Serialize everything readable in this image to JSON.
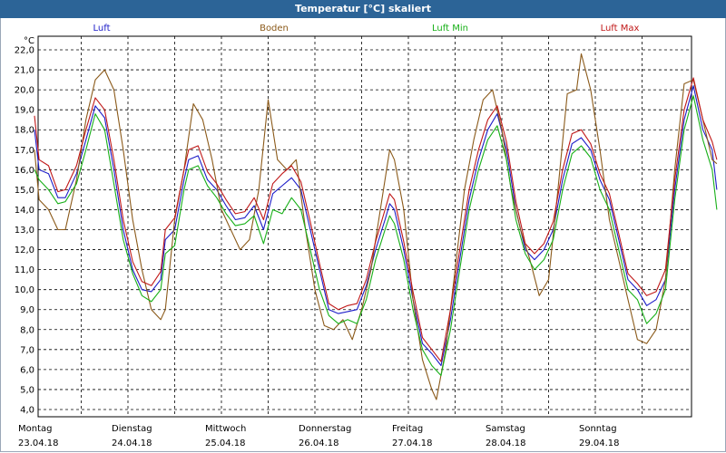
{
  "window": {
    "title": "Temperatur [°C] skaliert"
  },
  "chart_data": {
    "type": "line",
    "title": "Temperatur [°C] skaliert",
    "ylabel": "°C",
    "ylim": [
      4.0,
      22.0
    ],
    "yticks": [
      "4,0",
      "5,0",
      "6,0",
      "7,0",
      "8,0",
      "9,0",
      "10,0",
      "11,0",
      "12,0",
      "13,0",
      "14,0",
      "15,0",
      "16,0",
      "17,0",
      "18,0",
      "19,0",
      "20,0",
      "21,0",
      "22,0"
    ],
    "xlim": [
      0,
      7
    ],
    "x_categories": [
      {
        "day": "Montag",
        "date": "23.04.18"
      },
      {
        "day": "Dienstag",
        "date": "24.04.18"
      },
      {
        "day": "Mittwoch",
        "date": "25.04.18"
      },
      {
        "day": "Donnerstag",
        "date": "26.04.18"
      },
      {
        "day": "Freitag",
        "date": "27.04.18"
      },
      {
        "day": "Samstag",
        "date": "28.04.18"
      },
      {
        "day": "Sonntag",
        "date": "29.04.18"
      }
    ],
    "grid": true,
    "legend_position": "top",
    "series": [
      {
        "name": "Luft",
        "color": "#1c1cc8",
        "points": [
          [
            0.0,
            18.0
          ],
          [
            0.05,
            16.0
          ],
          [
            0.15,
            15.8
          ],
          [
            0.25,
            14.6
          ],
          [
            0.33,
            14.6
          ],
          [
            0.45,
            15.8
          ],
          [
            0.55,
            17.5
          ],
          [
            0.65,
            19.2
          ],
          [
            0.75,
            18.6
          ],
          [
            0.85,
            16.0
          ],
          [
            0.95,
            13.0
          ],
          [
            1.05,
            11.0
          ],
          [
            1.15,
            10.0
          ],
          [
            1.25,
            9.9
          ],
          [
            1.35,
            10.5
          ],
          [
            1.4,
            12.5
          ],
          [
            1.5,
            13.0
          ],
          [
            1.6,
            15.5
          ],
          [
            1.65,
            16.5
          ],
          [
            1.75,
            16.7
          ],
          [
            1.85,
            15.5
          ],
          [
            1.95,
            15.0
          ],
          [
            2.05,
            14.2
          ],
          [
            2.15,
            13.5
          ],
          [
            2.25,
            13.6
          ],
          [
            2.35,
            14.2
          ],
          [
            2.45,
            13.0
          ],
          [
            2.55,
            14.8
          ],
          [
            2.65,
            15.2
          ],
          [
            2.75,
            15.6
          ],
          [
            2.85,
            15.0
          ],
          [
            2.95,
            13.0
          ],
          [
            3.05,
            11.0
          ],
          [
            3.15,
            9.0
          ],
          [
            3.25,
            8.8
          ],
          [
            3.35,
            8.9
          ],
          [
            3.45,
            9.0
          ],
          [
            3.55,
            10.2
          ],
          [
            3.65,
            12.0
          ],
          [
            3.75,
            13.5
          ],
          [
            3.8,
            14.3
          ],
          [
            3.85,
            14.0
          ],
          [
            3.95,
            12.0
          ],
          [
            4.05,
            9.5
          ],
          [
            4.15,
            7.3
          ],
          [
            4.25,
            6.8
          ],
          [
            4.35,
            6.2
          ],
          [
            4.45,
            8.5
          ],
          [
            4.55,
            11.5
          ],
          [
            4.65,
            14.5
          ],
          [
            4.75,
            16.5
          ],
          [
            4.85,
            18.0
          ],
          [
            4.95,
            18.8
          ],
          [
            5.05,
            17.0
          ],
          [
            5.15,
            14.0
          ],
          [
            5.25,
            12.0
          ],
          [
            5.35,
            11.5
          ],
          [
            5.45,
            12.0
          ],
          [
            5.55,
            13.0
          ],
          [
            5.65,
            15.5
          ],
          [
            5.75,
            17.3
          ],
          [
            5.85,
            17.6
          ],
          [
            5.95,
            17.0
          ],
          [
            6.05,
            15.5
          ],
          [
            6.15,
            14.5
          ],
          [
            6.25,
            12.5
          ],
          [
            6.35,
            10.5
          ],
          [
            6.45,
            10.0
          ],
          [
            6.55,
            9.2
          ],
          [
            6.65,
            9.5
          ],
          [
            6.75,
            10.5
          ],
          [
            6.85,
            15.0
          ],
          [
            6.95,
            18.5
          ],
          [
            7.05,
            20.2
          ],
          [
            7.15,
            18.0
          ],
          [
            7.25,
            17.0
          ],
          [
            7.3,
            15.0
          ]
        ]
      },
      {
        "name": "Boden",
        "color": "#8b5a1a",
        "points": [
          [
            0.0,
            17.0
          ],
          [
            0.05,
            14.5
          ],
          [
            0.15,
            14.0
          ],
          [
            0.25,
            13.0
          ],
          [
            0.33,
            13.0
          ],
          [
            0.45,
            15.5
          ],
          [
            0.55,
            18.5
          ],
          [
            0.65,
            20.5
          ],
          [
            0.75,
            21.0
          ],
          [
            0.85,
            20.0
          ],
          [
            0.95,
            17.0
          ],
          [
            1.05,
            13.5
          ],
          [
            1.15,
            11.0
          ],
          [
            1.25,
            9.0
          ],
          [
            1.35,
            8.5
          ],
          [
            1.4,
            9.0
          ],
          [
            1.5,
            13.5
          ],
          [
            1.6,
            16.0
          ],
          [
            1.7,
            19.3
          ],
          [
            1.8,
            18.5
          ],
          [
            1.9,
            16.5
          ],
          [
            2.0,
            14.0
          ],
          [
            2.1,
            13.0
          ],
          [
            2.2,
            12.0
          ],
          [
            2.3,
            12.5
          ],
          [
            2.4,
            15.0
          ],
          [
            2.5,
            19.5
          ],
          [
            2.6,
            16.5
          ],
          [
            2.7,
            16.0
          ],
          [
            2.8,
            16.5
          ],
          [
            2.9,
            13.0
          ],
          [
            3.0,
            10.0
          ],
          [
            3.1,
            8.2
          ],
          [
            3.2,
            8.0
          ],
          [
            3.3,
            8.5
          ],
          [
            3.4,
            7.5
          ],
          [
            3.5,
            9.0
          ],
          [
            3.6,
            11.0
          ],
          [
            3.7,
            14.0
          ],
          [
            3.8,
            17.0
          ],
          [
            3.85,
            16.5
          ],
          [
            3.95,
            14.0
          ],
          [
            4.05,
            9.5
          ],
          [
            4.15,
            6.5
          ],
          [
            4.25,
            5.0
          ],
          [
            4.3,
            4.5
          ],
          [
            4.4,
            7.0
          ],
          [
            4.5,
            11.0
          ],
          [
            4.6,
            15.0
          ],
          [
            4.7,
            17.5
          ],
          [
            4.8,
            19.5
          ],
          [
            4.9,
            20.0
          ],
          [
            5.0,
            18.0
          ],
          [
            5.1,
            15.0
          ],
          [
            5.2,
            13.0
          ],
          [
            5.3,
            11.5
          ],
          [
            5.4,
            9.7
          ],
          [
            5.5,
            10.5
          ],
          [
            5.6,
            15.0
          ],
          [
            5.7,
            19.8
          ],
          [
            5.8,
            20.0
          ],
          [
            5.85,
            21.8
          ],
          [
            5.95,
            20.0
          ],
          [
            6.05,
            17.0
          ],
          [
            6.15,
            13.5
          ],
          [
            6.25,
            11.5
          ],
          [
            6.35,
            9.5
          ],
          [
            6.45,
            7.5
          ],
          [
            6.55,
            7.3
          ],
          [
            6.65,
            8.0
          ],
          [
            6.75,
            10.5
          ],
          [
            6.85,
            16.0
          ],
          [
            6.95,
            20.3
          ],
          [
            7.05,
            20.5
          ],
          [
            7.15,
            18.5
          ],
          [
            7.25,
            16.5
          ],
          [
            7.3,
            16.3
          ]
        ]
      },
      {
        "name": "Luft Min",
        "color": "#18b018",
        "points": [
          [
            0.0,
            16.0
          ],
          [
            0.05,
            15.5
          ],
          [
            0.15,
            15.0
          ],
          [
            0.25,
            14.3
          ],
          [
            0.33,
            14.4
          ],
          [
            0.45,
            15.3
          ],
          [
            0.55,
            17.0
          ],
          [
            0.65,
            18.8
          ],
          [
            0.75,
            18.0
          ],
          [
            0.85,
            15.3
          ],
          [
            0.95,
            12.5
          ],
          [
            1.05,
            10.8
          ],
          [
            1.15,
            9.7
          ],
          [
            1.25,
            9.4
          ],
          [
            1.35,
            10.0
          ],
          [
            1.4,
            11.8
          ],
          [
            1.5,
            12.2
          ],
          [
            1.6,
            15.0
          ],
          [
            1.65,
            16.0
          ],
          [
            1.75,
            16.2
          ],
          [
            1.85,
            15.2
          ],
          [
            1.95,
            14.6
          ],
          [
            2.05,
            13.8
          ],
          [
            2.15,
            13.2
          ],
          [
            2.25,
            13.3
          ],
          [
            2.35,
            13.7
          ],
          [
            2.45,
            12.3
          ],
          [
            2.55,
            14.0
          ],
          [
            2.65,
            13.8
          ],
          [
            2.75,
            14.6
          ],
          [
            2.85,
            14.0
          ],
          [
            2.95,
            12.0
          ],
          [
            3.05,
            10.0
          ],
          [
            3.15,
            8.7
          ],
          [
            3.25,
            8.3
          ],
          [
            3.35,
            8.5
          ],
          [
            3.45,
            8.3
          ],
          [
            3.55,
            9.5
          ],
          [
            3.65,
            11.5
          ],
          [
            3.75,
            13.0
          ],
          [
            3.8,
            13.7
          ],
          [
            3.85,
            13.3
          ],
          [
            3.95,
            11.5
          ],
          [
            4.05,
            9.0
          ],
          [
            4.15,
            7.0
          ],
          [
            4.25,
            6.2
          ],
          [
            4.35,
            5.7
          ],
          [
            4.45,
            8.0
          ],
          [
            4.55,
            11.0
          ],
          [
            4.65,
            14.0
          ],
          [
            4.75,
            16.0
          ],
          [
            4.85,
            17.5
          ],
          [
            4.95,
            18.2
          ],
          [
            5.05,
            16.5
          ],
          [
            5.15,
            13.5
          ],
          [
            5.25,
            11.8
          ],
          [
            5.35,
            11.0
          ],
          [
            5.45,
            11.5
          ],
          [
            5.55,
            12.5
          ],
          [
            5.65,
            15.0
          ],
          [
            5.75,
            16.8
          ],
          [
            5.85,
            17.2
          ],
          [
            5.95,
            16.6
          ],
          [
            6.05,
            15.0
          ],
          [
            6.15,
            14.0
          ],
          [
            6.25,
            12.0
          ],
          [
            6.35,
            10.0
          ],
          [
            6.45,
            9.5
          ],
          [
            6.55,
            8.3
          ],
          [
            6.65,
            8.8
          ],
          [
            6.75,
            10.0
          ],
          [
            6.85,
            14.5
          ],
          [
            6.95,
            18.0
          ],
          [
            7.05,
            19.7
          ],
          [
            7.15,
            17.5
          ],
          [
            7.25,
            16.0
          ],
          [
            7.3,
            14.0
          ]
        ]
      },
      {
        "name": "Luft Max",
        "color": "#c01818",
        "points": [
          [
            0.0,
            18.7
          ],
          [
            0.05,
            16.5
          ],
          [
            0.15,
            16.2
          ],
          [
            0.25,
            14.9
          ],
          [
            0.33,
            15.0
          ],
          [
            0.45,
            16.2
          ],
          [
            0.55,
            18.0
          ],
          [
            0.65,
            19.6
          ],
          [
            0.75,
            19.0
          ],
          [
            0.85,
            16.5
          ],
          [
            0.95,
            13.5
          ],
          [
            1.05,
            11.4
          ],
          [
            1.15,
            10.4
          ],
          [
            1.25,
            10.2
          ],
          [
            1.35,
            10.9
          ],
          [
            1.4,
            13.0
          ],
          [
            1.5,
            13.6
          ],
          [
            1.6,
            16.0
          ],
          [
            1.65,
            17.0
          ],
          [
            1.75,
            17.2
          ],
          [
            1.85,
            15.9
          ],
          [
            1.95,
            15.3
          ],
          [
            2.05,
            14.5
          ],
          [
            2.15,
            13.8
          ],
          [
            2.25,
            13.9
          ],
          [
            2.35,
            14.6
          ],
          [
            2.45,
            13.5
          ],
          [
            2.55,
            15.3
          ],
          [
            2.65,
            15.8
          ],
          [
            2.75,
            16.2
          ],
          [
            2.85,
            15.4
          ],
          [
            2.95,
            13.4
          ],
          [
            3.05,
            11.3
          ],
          [
            3.15,
            9.3
          ],
          [
            3.25,
            9.0
          ],
          [
            3.35,
            9.2
          ],
          [
            3.45,
            9.3
          ],
          [
            3.55,
            10.5
          ],
          [
            3.65,
            12.4
          ],
          [
            3.75,
            14.0
          ],
          [
            3.8,
            14.8
          ],
          [
            3.85,
            14.5
          ],
          [
            3.95,
            12.4
          ],
          [
            4.05,
            9.9
          ],
          [
            4.15,
            7.6
          ],
          [
            4.25,
            7.0
          ],
          [
            4.35,
            6.4
          ],
          [
            4.45,
            9.0
          ],
          [
            4.55,
            12.0
          ],
          [
            4.65,
            15.0
          ],
          [
            4.75,
            17.0
          ],
          [
            4.85,
            18.5
          ],
          [
            4.95,
            19.2
          ],
          [
            5.05,
            17.4
          ],
          [
            5.15,
            14.4
          ],
          [
            5.25,
            12.3
          ],
          [
            5.35,
            11.8
          ],
          [
            5.45,
            12.3
          ],
          [
            5.55,
            13.4
          ],
          [
            5.65,
            16.0
          ],
          [
            5.75,
            17.8
          ],
          [
            5.85,
            18.0
          ],
          [
            5.95,
            17.3
          ],
          [
            6.05,
            15.8
          ],
          [
            6.15,
            14.8
          ],
          [
            6.25,
            12.8
          ],
          [
            6.35,
            10.8
          ],
          [
            6.45,
            10.3
          ],
          [
            6.55,
            9.7
          ],
          [
            6.65,
            9.9
          ],
          [
            6.75,
            11.0
          ],
          [
            6.85,
            15.5
          ],
          [
            6.95,
            19.0
          ],
          [
            7.05,
            20.6
          ],
          [
            7.15,
            18.5
          ],
          [
            7.25,
            17.4
          ],
          [
            7.3,
            16.5
          ]
        ]
      }
    ]
  }
}
